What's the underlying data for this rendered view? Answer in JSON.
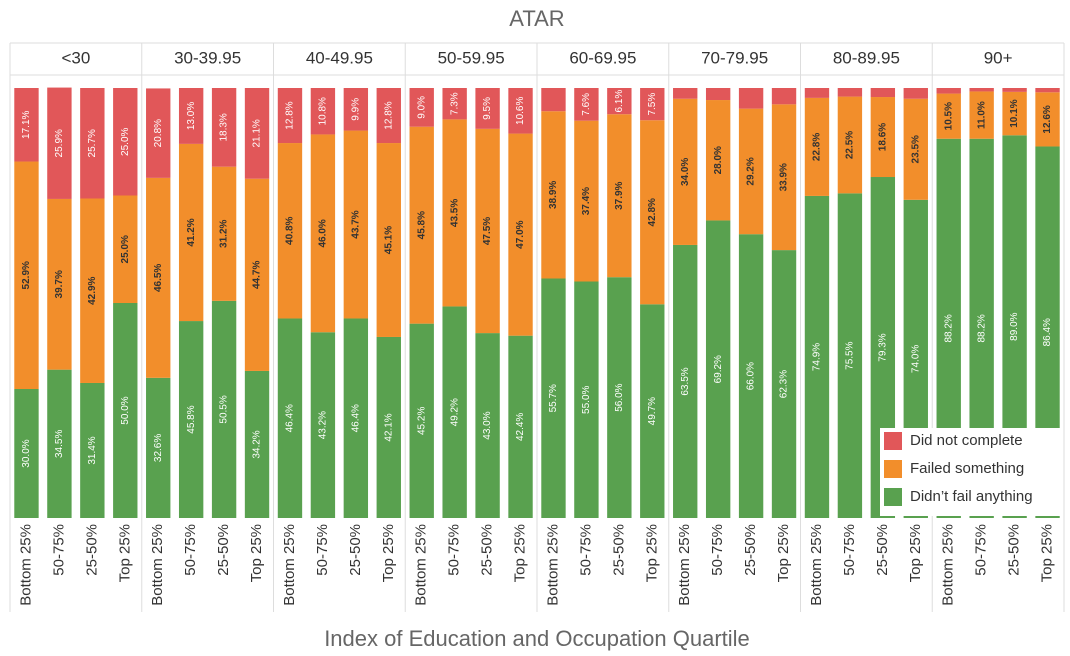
{
  "chart_data": {
    "type": "bar",
    "stacked": true,
    "title": "ATAR",
    "xlabel": "Index of Education and Occupation Quartile",
    "panels": [
      "<30",
      "30-39.95",
      "40-49.95",
      "50-59.95",
      "60-69.95",
      "70-79.95",
      "80-89.95",
      "90+"
    ],
    "categories": [
      "Bottom 25%",
      "50-75%",
      "25-50%",
      "Top 25%"
    ],
    "ylim": [
      0,
      100
    ],
    "legend": "lower right",
    "series": [
      {
        "name": "Did not complete",
        "color": "#e15759",
        "values": [
          [
            17.1,
            25.9,
            25.7,
            25.0
          ],
          [
            20.8,
            13.0,
            18.3,
            21.1
          ],
          [
            12.8,
            10.8,
            9.9,
            12.8
          ],
          [
            9.0,
            7.3,
            9.5,
            10.6
          ],
          [
            5.4,
            7.6,
            6.1,
            7.5
          ],
          [
            2.5,
            2.8,
            4.8,
            3.8
          ],
          [
            2.3,
            2.0,
            2.1,
            2.5
          ],
          [
            1.3,
            0.8,
            0.9,
            1.0
          ]
        ],
        "value_labels": [
          [
            "17.1%",
            "25.9%",
            "25.7%",
            "25.0%"
          ],
          [
            "20.8%",
            "13.0%",
            "18.3%",
            "21.1%"
          ],
          [
            "12.8%",
            "10.8%",
            "9.9%",
            "12.8%"
          ],
          [
            "9.0%",
            "7.3%",
            "9.5%",
            "10.6%"
          ],
          [
            null,
            "7.6%",
            "6.1%",
            "7.5%"
          ],
          [
            null,
            null,
            null,
            null
          ],
          [
            null,
            null,
            null,
            null
          ],
          [
            null,
            null,
            null,
            null
          ]
        ]
      },
      {
        "name": "Failed something",
        "color": "#f28e2b",
        "values": [
          [
            52.9,
            39.7,
            42.9,
            25.0
          ],
          [
            46.5,
            41.2,
            31.2,
            44.7
          ],
          [
            40.8,
            46.0,
            43.7,
            45.1
          ],
          [
            45.8,
            43.5,
            47.5,
            47.0
          ],
          [
            38.9,
            37.4,
            37.9,
            42.8
          ],
          [
            34.0,
            28.0,
            29.2,
            33.9
          ],
          [
            22.8,
            22.5,
            18.6,
            23.5
          ],
          [
            10.5,
            11.0,
            10.1,
            12.6
          ]
        ],
        "value_labels": [
          [
            "52.9%",
            "39.7%",
            "42.9%",
            "25.0%"
          ],
          [
            "46.5%",
            "41.2%",
            "31.2%",
            "44.7%"
          ],
          [
            "40.8%",
            "46.0%",
            "43.7%",
            "45.1%"
          ],
          [
            "45.8%",
            "43.5%",
            "47.5%",
            "47.0%"
          ],
          [
            "38.9%",
            "37.4%",
            "37.9%",
            "42.8%"
          ],
          [
            "34.0%",
            "28.0%",
            "29.2%",
            "33.9%"
          ],
          [
            "22.8%",
            "22.5%",
            "18.6%",
            "23.5%"
          ],
          [
            "10.5%",
            "11.0%",
            "10.1%",
            "12.6%"
          ]
        ]
      },
      {
        "name": "Didn’t fail anything",
        "color": "#59a14f",
        "values": [
          [
            30.0,
            34.5,
            31.4,
            50.0
          ],
          [
            32.6,
            45.8,
            50.5,
            34.2
          ],
          [
            46.4,
            43.2,
            46.4,
            42.1
          ],
          [
            45.2,
            49.2,
            43.0,
            42.4
          ],
          [
            55.7,
            55.0,
            56.0,
            49.7
          ],
          [
            63.5,
            69.2,
            66.0,
            62.3
          ],
          [
            74.9,
            75.5,
            79.3,
            74.0
          ],
          [
            88.2,
            88.2,
            89.0,
            86.4
          ]
        ],
        "value_labels": [
          [
            "30.0%",
            "34.5%",
            "31.4%",
            "50.0%"
          ],
          [
            "32.6%",
            "45.8%",
            "50.5%",
            "34.2%"
          ],
          [
            "46.4%",
            "43.2%",
            "46.4%",
            "42.1%"
          ],
          [
            "45.2%",
            "49.2%",
            "43.0%",
            "42.4%"
          ],
          [
            "55.7%",
            "55.0%",
            "56.0%",
            "49.7%"
          ],
          [
            "63.5%",
            "69.2%",
            "66.0%",
            "62.3%"
          ],
          [
            "74.9%",
            "75.5%",
            "79.3%",
            "74.0%"
          ],
          [
            "88.2%",
            "88.2%",
            "89.0%",
            "86.4%"
          ]
        ]
      }
    ]
  }
}
